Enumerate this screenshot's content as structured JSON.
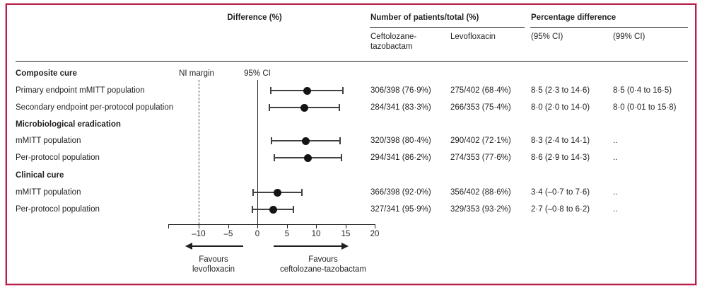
{
  "header": {
    "difference": "Difference (%)",
    "patients": "Number of patients/total (%)",
    "percentage_difference": "Percentage difference",
    "col_ceftolozane": "Ceftolozane-tazobactam",
    "col_levofloxacin": "Levofloxacin",
    "col_ci95": "(95% CI)",
    "col_ci99": "(99% CI)"
  },
  "plot_labels": {
    "ni_margin": "NI margin",
    "ci": "95% CI",
    "favours_left_line1": "Favours",
    "favours_left_line2": "levofloxacin",
    "favours_right_line1": "Favours",
    "favours_right_line2": "ceftolozane-tazobactam"
  },
  "rows": [
    {
      "label": "Composite cure",
      "group": true
    },
    {
      "label": "Primary endpoint mMITT population",
      "cefto": "306/398 (76·9%)",
      "levo": "275/402 (68·4%)",
      "ci95": "8·5 (2·3 to 14·6)",
      "ci99": "8·5 (0·4 to 16·5)"
    },
    {
      "label": "Secondary endpoint per-protocol population",
      "cefto": "284/341 (83·3%)",
      "levo": "266/353 (75·4%)",
      "ci95": "8·0 (2·0 to 14·0)",
      "ci99": "8·0 (0·01 to 15·8)"
    },
    {
      "label": "Microbiological eradication",
      "group": true
    },
    {
      "label": "mMITT population",
      "cefto": "320/398 (80·4%)",
      "levo": "290/402 (72·1%)",
      "ci95": "8·3 (2·4 to 14·1)",
      "ci99": ".."
    },
    {
      "label": "Per-protocol population",
      "cefto": "294/341 (86·2%)",
      "levo": "274/353 (77·6%)",
      "ci95": "8·6 (2·9 to 14·3)",
      "ci99": ".."
    },
    {
      "label": "Clinical cure",
      "group": true
    },
    {
      "label": "mMITT population",
      "cefto": "366/398 (92·0%)",
      "levo": "356/402 (88·6%)",
      "ci95": "3·4 (–0·7 to 7·6)",
      "ci99": ".."
    },
    {
      "label": "Per-protocol population",
      "cefto": "327/341 (95·9%)",
      "levo": "329/353 (93·2%)",
      "ci95": "2·7 (–0·8 to 6·2)",
      "ci99": ".."
    }
  ],
  "chart_data": {
    "type": "scatter",
    "subtype": "forest-plot",
    "title": "Difference (%)",
    "xlabel": "",
    "xlim": [
      -15.2,
      20
    ],
    "xticks": [
      -10,
      -5,
      0,
      5,
      10,
      15,
      20
    ],
    "xtick_labels": [
      "–10",
      "–5",
      "0",
      "5",
      "10",
      "15",
      "20"
    ],
    "reference_line_x": 0,
    "ni_margin_x": -10,
    "ni_margin_style": "dashed",
    "favours_left": "Favours levofloxacin",
    "favours_right": "Favours ceftolozane-tazobactam",
    "series": [
      {
        "name": "Primary endpoint mMITT population",
        "group": "Composite cure",
        "estimate": 8.5,
        "ci95_low": 2.3,
        "ci95_high": 14.6,
        "ci99_low": 0.4,
        "ci99_high": 16.5
      },
      {
        "name": "Secondary endpoint per-protocol population",
        "group": "Composite cure",
        "estimate": 8.0,
        "ci95_low": 2.0,
        "ci95_high": 14.0,
        "ci99_low": 0.01,
        "ci99_high": 15.8
      },
      {
        "name": "mMITT population",
        "group": "Microbiological eradication",
        "estimate": 8.3,
        "ci95_low": 2.4,
        "ci95_high": 14.1
      },
      {
        "name": "Per-protocol population",
        "group": "Microbiological eradication",
        "estimate": 8.6,
        "ci95_low": 2.9,
        "ci95_high": 14.3
      },
      {
        "name": "mMITT population",
        "group": "Clinical cure",
        "estimate": 3.4,
        "ci95_low": -0.7,
        "ci95_high": 7.6
      },
      {
        "name": "Per-protocol population",
        "group": "Clinical cure",
        "estimate": 2.7,
        "ci95_low": -0.8,
        "ci95_high": 6.2
      }
    ]
  }
}
